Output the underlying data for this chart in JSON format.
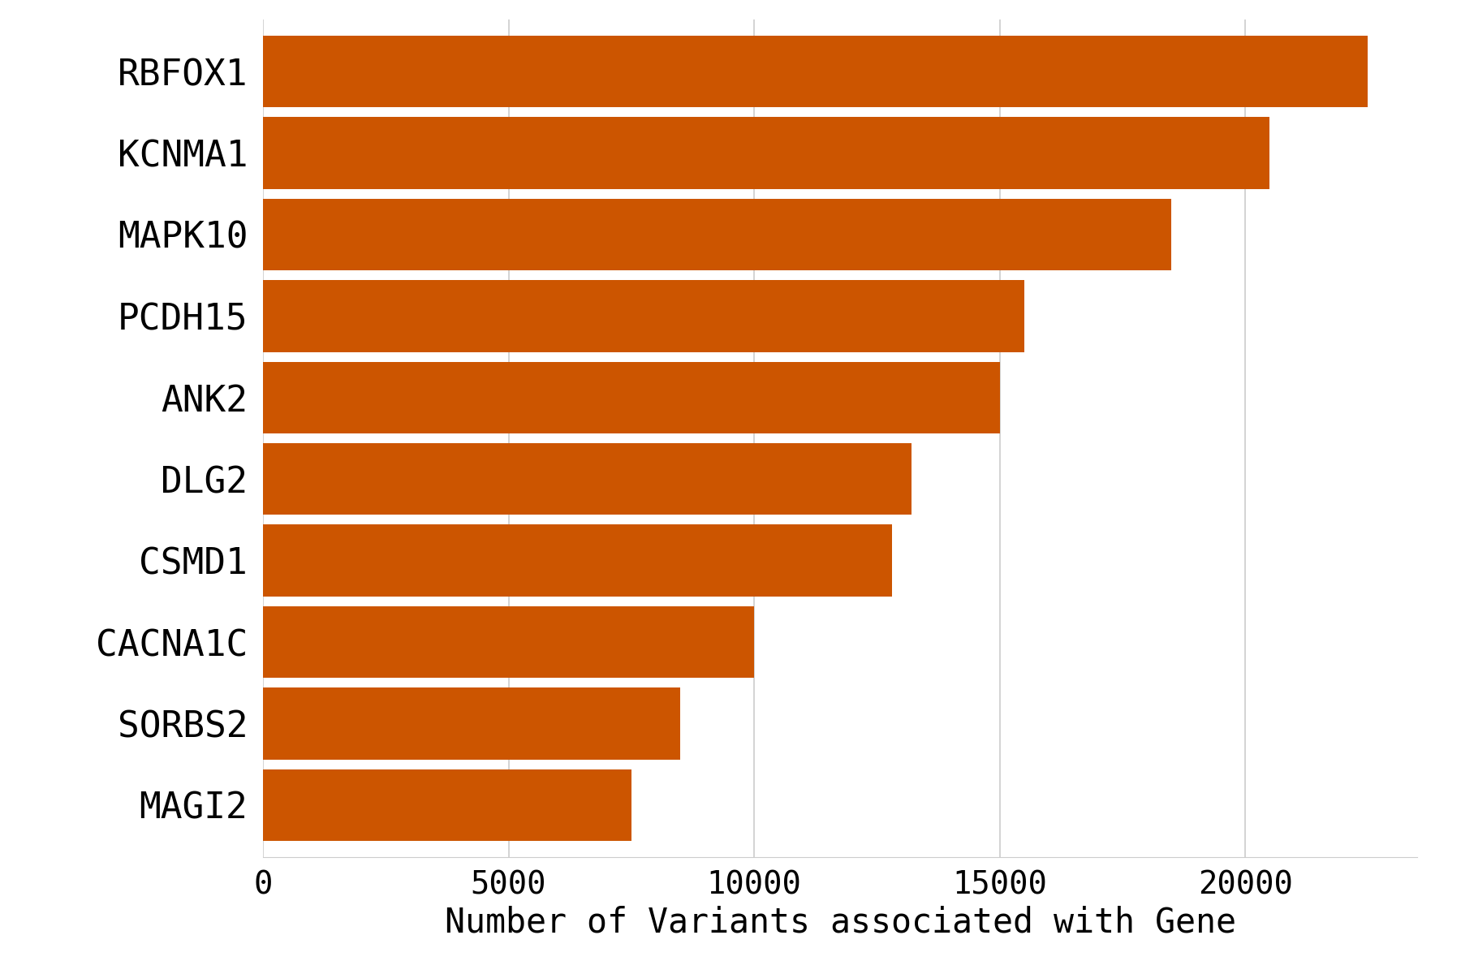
{
  "genes": [
    "RBFOX1",
    "KCNMA1",
    "MAPK10",
    "PCDH15",
    "ANK2",
    "DLG2",
    "CSMD1",
    "CACNA1C",
    "SORBS2",
    "MAGI2"
  ],
  "values": [
    22500,
    20500,
    18500,
    15500,
    15000,
    13200,
    12800,
    10000,
    8500,
    7500
  ],
  "bar_color": "#cc5500",
  "xlabel": "Number of Variants associated with Gene",
  "background_color": "#ffffff",
  "xlim": [
    0,
    23500
  ],
  "xticks": [
    0,
    5000,
    10000,
    15000,
    20000
  ],
  "xlabel_fontsize": 30,
  "ylabel_fontsize": 32,
  "tick_fontsize": 28,
  "bar_height": 0.88,
  "spine_color": "#cccccc",
  "grid_color": "#cccccc"
}
